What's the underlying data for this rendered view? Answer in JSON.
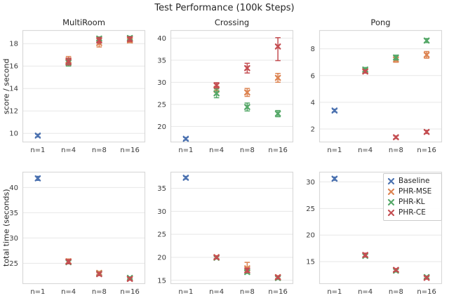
{
  "figure": {
    "title": "Test Performance (100k Steps)",
    "ylabel_top": "score / second",
    "ylabel_bottom": "total time (seconds)"
  },
  "colors": {
    "Baseline": "#4C72B0",
    "PHR-MSE": "#DD8452",
    "PHR-KL": "#55A868",
    "PHR-CE": "#C44E52",
    "grid": "#e7e7e7",
    "spine": "#d9d9d9",
    "tick_text": "#3b3b3b",
    "title_text": "#262626"
  },
  "legend": {
    "items": [
      "Baseline",
      "PHR-MSE",
      "PHR-KL",
      "PHR-CE"
    ]
  },
  "chart_data": [
    {
      "id": "multiroom-score",
      "type": "scatter",
      "title": "MultiRoom",
      "ylabel": "score / second",
      "ylim": [
        9.2,
        19.2
      ],
      "yticks": [
        10,
        12,
        14,
        16,
        18
      ],
      "categories": [
        "n=1",
        "n=4",
        "n=8",
        "n=16"
      ],
      "series": [
        {
          "name": "Baseline",
          "points": [
            {
              "x": "n=1",
              "y": 9.8,
              "err": 0.12
            }
          ]
        },
        {
          "name": "PHR-MSE",
          "points": [
            {
              "x": "n=4",
              "y": 16.5,
              "err": 0.35
            },
            {
              "x": "n=8",
              "y": 18.05,
              "err": 0.35
            },
            {
              "x": "n=16",
              "y": 18.28,
              "err": 0.2
            }
          ]
        },
        {
          "name": "PHR-KL",
          "points": [
            {
              "x": "n=4",
              "y": 16.3,
              "err": 0.3
            },
            {
              "x": "n=8",
              "y": 18.45,
              "err": 0.15
            },
            {
              "x": "n=16",
              "y": 18.5,
              "err": 0.15
            }
          ]
        },
        {
          "name": "PHR-CE",
          "points": [
            {
              "x": "n=4",
              "y": 16.4,
              "err": 0.3
            },
            {
              "x": "n=8",
              "y": 18.3,
              "err": 0.25
            },
            {
              "x": "n=16",
              "y": 18.4,
              "err": 0.2
            }
          ]
        }
      ]
    },
    {
      "id": "crossing-score",
      "type": "scatter",
      "title": "Crossing",
      "ylabel": "score / second",
      "ylim": [
        16.4,
        41.8
      ],
      "yticks": [
        20,
        25,
        30,
        35,
        40
      ],
      "categories": [
        "n=1",
        "n=4",
        "n=8",
        "n=16"
      ],
      "series": [
        {
          "name": "Baseline",
          "points": [
            {
              "x": "n=1",
              "y": 17.2,
              "err": 0.3
            }
          ]
        },
        {
          "name": "PHR-MSE",
          "points": [
            {
              "x": "n=4",
              "y": 28.4,
              "err": 0.7
            },
            {
              "x": "n=8",
              "y": 27.7,
              "err": 0.9
            },
            {
              "x": "n=16",
              "y": 31.0,
              "err": 1.0
            }
          ]
        },
        {
          "name": "PHR-KL",
          "points": [
            {
              "x": "n=4",
              "y": 27.5,
              "err": 1.0
            },
            {
              "x": "n=8",
              "y": 24.4,
              "err": 0.9
            },
            {
              "x": "n=16",
              "y": 22.9,
              "err": 0.7
            }
          ]
        },
        {
          "name": "PHR-CE",
          "points": [
            {
              "x": "n=4",
              "y": 29.3,
              "err": 0.6
            },
            {
              "x": "n=8",
              "y": 33.2,
              "err": 1.1
            },
            {
              "x": "n=16",
              "y": 38.1,
              "err_lo": 3.2,
              "err_hi": 2.0
            }
          ]
        }
      ]
    },
    {
      "id": "pong-score",
      "type": "scatter",
      "title": "Pong",
      "ylabel": "score / second",
      "ylim": [
        1.0,
        9.4
      ],
      "yticks": [
        2,
        4,
        6,
        8
      ],
      "categories": [
        "n=1",
        "n=4",
        "n=8",
        "n=16"
      ],
      "series": [
        {
          "name": "Baseline",
          "points": [
            {
              "x": "n=1",
              "y": 3.38,
              "err": 0.1
            }
          ]
        },
        {
          "name": "PHR-MSE",
          "points": [
            {
              "x": "n=4",
              "y": 6.35,
              "err": 0.15
            },
            {
              "x": "n=8",
              "y": 7.2,
              "err": 0.2
            },
            {
              "x": "n=16",
              "y": 7.55,
              "err": 0.25
            }
          ]
        },
        {
          "name": "PHR-KL",
          "points": [
            {
              "x": "n=4",
              "y": 6.45,
              "err": 0.15
            },
            {
              "x": "n=8",
              "y": 7.35,
              "err": 0.18
            },
            {
              "x": "n=16",
              "y": 8.62,
              "err": 0.15
            }
          ]
        },
        {
          "name": "PHR-CE",
          "points": [
            {
              "x": "n=4",
              "y": 6.3,
              "err": 0.12
            },
            {
              "x": "n=8",
              "y": 1.38,
              "err": 0.1
            },
            {
              "x": "n=16",
              "y": 1.78,
              "err": 0.12
            }
          ]
        }
      ]
    },
    {
      "id": "multiroom-time",
      "type": "scatter",
      "title": "",
      "ylabel": "total time (seconds)",
      "ylim": [
        20.9,
        43.1
      ],
      "yticks": [
        25,
        30,
        35,
        40
      ],
      "categories": [
        "n=1",
        "n=4",
        "n=8",
        "n=16"
      ],
      "series": [
        {
          "name": "Baseline",
          "points": [
            {
              "x": "n=1",
              "y": 41.8,
              "err": 0.4
            }
          ]
        },
        {
          "name": "PHR-MSE",
          "points": [
            {
              "x": "n=4",
              "y": 25.4,
              "err": 0.45
            },
            {
              "x": "n=8",
              "y": 23.1,
              "err": 0.3
            },
            {
              "x": "n=16",
              "y": 21.95,
              "err": 0.2
            }
          ]
        },
        {
          "name": "PHR-KL",
          "points": [
            {
              "x": "n=4",
              "y": 25.2,
              "err": 0.3
            },
            {
              "x": "n=8",
              "y": 22.9,
              "err": 0.25
            },
            {
              "x": "n=16",
              "y": 22.1,
              "err": 0.2
            }
          ]
        },
        {
          "name": "PHR-CE",
          "points": [
            {
              "x": "n=4",
              "y": 25.3,
              "err": 0.4
            },
            {
              "x": "n=8",
              "y": 22.85,
              "err": 0.3
            },
            {
              "x": "n=16",
              "y": 21.9,
              "err": 0.25
            }
          ]
        }
      ]
    },
    {
      "id": "crossing-time",
      "type": "scatter",
      "title": "",
      "ylabel": "total time (seconds)",
      "ylim": [
        14.2,
        38.6
      ],
      "yticks": [
        15,
        20,
        25,
        30,
        35
      ],
      "categories": [
        "n=1",
        "n=4",
        "n=8",
        "n=16"
      ],
      "series": [
        {
          "name": "Baseline",
          "points": [
            {
              "x": "n=1",
              "y": 37.3,
              "err": 0.3
            }
          ]
        },
        {
          "name": "PHR-MSE",
          "points": [
            {
              "x": "n=4",
              "y": 20.05,
              "err": 0.3
            },
            {
              "x": "n=8",
              "y": 17.6,
              "err_lo": 0.9,
              "err_hi": 1.3
            },
            {
              "x": "n=16",
              "y": 15.7,
              "err": 0.3
            }
          ]
        },
        {
          "name": "PHR-KL",
          "points": [
            {
              "x": "n=4",
              "y": 19.9,
              "err": 0.25
            },
            {
              "x": "n=8",
              "y": 16.8,
              "err": 0.3
            },
            {
              "x": "n=16",
              "y": 15.5,
              "err": 0.3
            }
          ]
        },
        {
          "name": "PHR-CE",
          "points": [
            {
              "x": "n=4",
              "y": 20.0,
              "err": 0.3
            },
            {
              "x": "n=8",
              "y": 17.15,
              "err": 0.45
            },
            {
              "x": "n=16",
              "y": 15.65,
              "err": 0.3
            }
          ]
        }
      ]
    },
    {
      "id": "pong-time",
      "type": "scatter",
      "title": "",
      "ylabel": "total time (seconds)",
      "ylim": [
        10.8,
        31.9
      ],
      "yticks": [
        15,
        20,
        25,
        30
      ],
      "categories": [
        "n=1",
        "n=4",
        "n=8",
        "n=16"
      ],
      "series": [
        {
          "name": "Baseline",
          "points": [
            {
              "x": "n=1",
              "y": 30.6,
              "err": 0.3
            }
          ]
        },
        {
          "name": "PHR-MSE",
          "points": [
            {
              "x": "n=4",
              "y": 16.2,
              "err": 0.3
            },
            {
              "x": "n=8",
              "y": 13.4,
              "err": 0.2
            },
            {
              "x": "n=16",
              "y": 12.0,
              "err": 0.2
            }
          ]
        },
        {
          "name": "PHR-KL",
          "points": [
            {
              "x": "n=4",
              "y": 16.1,
              "err": 0.25
            },
            {
              "x": "n=8",
              "y": 13.3,
              "err": 0.25
            },
            {
              "x": "n=16",
              "y": 12.1,
              "err": 0.2
            }
          ]
        },
        {
          "name": "PHR-CE",
          "points": [
            {
              "x": "n=4",
              "y": 16.25,
              "err": 0.35
            },
            {
              "x": "n=8",
              "y": 13.45,
              "err": 0.25
            },
            {
              "x": "n=16",
              "y": 11.95,
              "err": 0.25
            }
          ]
        }
      ]
    }
  ]
}
